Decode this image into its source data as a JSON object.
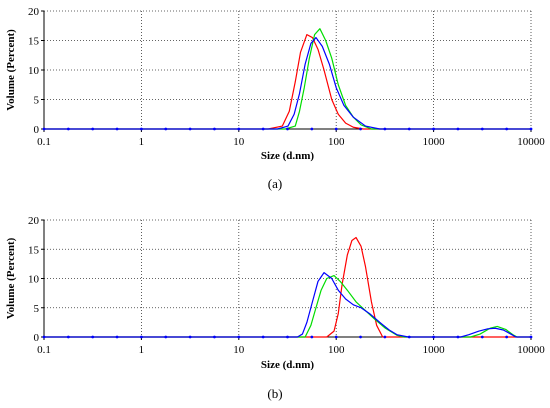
{
  "chart_data": [
    {
      "type": "line",
      "panel_label": "(a)",
      "xlabel": "Size (d.nm)",
      "ylabel": "Volume (Percent)",
      "x_scale": "log",
      "xlim": [
        0.1,
        10000
      ],
      "ylim": [
        0,
        20
      ],
      "x_ticks": [
        0.1,
        1,
        10,
        100,
        1000,
        10000
      ],
      "x_tick_labels": [
        "0.1",
        "1",
        "10",
        "100",
        "1000",
        "10000"
      ],
      "y_ticks": [
        0,
        5,
        10,
        15,
        20
      ],
      "y_tick_labels": [
        "0",
        "5",
        "10",
        "15",
        "20"
      ],
      "grid": true,
      "series": [
        {
          "color": "#ff0000",
          "points": [
            [
              0.1,
              0
            ],
            [
              20,
              0
            ],
            [
              28,
              0.5
            ],
            [
              33,
              3
            ],
            [
              38,
              8
            ],
            [
              43,
              13
            ],
            [
              50,
              16
            ],
            [
              57,
              15.5
            ],
            [
              65,
              13.5
            ],
            [
              75,
              10
            ],
            [
              90,
              5
            ],
            [
              105,
              2.5
            ],
            [
              125,
              1
            ],
            [
              150,
              0.3
            ],
            [
              190,
              0
            ],
            [
              10000,
              0
            ]
          ]
        },
        {
          "color": "#00dd00",
          "points": [
            [
              0.1,
              0
            ],
            [
              30,
              0
            ],
            [
              38,
              0.5
            ],
            [
              42,
              3
            ],
            [
              47,
              7
            ],
            [
              53,
              12
            ],
            [
              60,
              16
            ],
            [
              68,
              17
            ],
            [
              78,
              15
            ],
            [
              90,
              12
            ],
            [
              105,
              7.5
            ],
            [
              125,
              4
            ],
            [
              150,
              2
            ],
            [
              180,
              0.7
            ],
            [
              230,
              0
            ],
            [
              10000,
              0
            ]
          ]
        },
        {
          "color": "#0000ff",
          "points": [
            [
              0.1,
              0
            ],
            [
              25,
              0
            ],
            [
              32,
              0.5
            ],
            [
              37,
              2.5
            ],
            [
              42,
              6
            ],
            [
              48,
              11
            ],
            [
              55,
              14.5
            ],
            [
              62,
              15.5
            ],
            [
              72,
              14
            ],
            [
              85,
              11
            ],
            [
              100,
              7
            ],
            [
              120,
              4
            ],
            [
              150,
              2
            ],
            [
              200,
              0.5
            ],
            [
              280,
              0
            ],
            [
              10000,
              0
            ]
          ]
        }
      ]
    },
    {
      "type": "line",
      "panel_label": "(b)",
      "xlabel": "Size (d.nm)",
      "ylabel": "Volume (Percent)",
      "x_scale": "log",
      "xlim": [
        0.1,
        10000
      ],
      "ylim": [
        0,
        20
      ],
      "x_ticks": [
        0.1,
        1,
        10,
        100,
        1000,
        10000
      ],
      "x_tick_labels": [
        "0.1",
        "1",
        "10",
        "100",
        "1000",
        "10000"
      ],
      "y_ticks": [
        0,
        5,
        10,
        15,
        20
      ],
      "y_tick_labels": [
        "0",
        "5",
        "10",
        "15",
        "20"
      ],
      "grid": true,
      "series": [
        {
          "color": "#ff0000",
          "points": [
            [
              0.1,
              0
            ],
            [
              80,
              0
            ],
            [
              95,
              1
            ],
            [
              105,
              4
            ],
            [
              115,
              9
            ],
            [
              130,
              14
            ],
            [
              145,
              16.5
            ],
            [
              160,
              17
            ],
            [
              180,
              15.5
            ],
            [
              200,
              12
            ],
            [
              230,
              6
            ],
            [
              260,
              2
            ],
            [
              300,
              0
            ],
            [
              10000,
              0
            ]
          ]
        },
        {
          "color": "#00dd00",
          "points": [
            [
              0.1,
              0
            ],
            [
              48,
              0
            ],
            [
              55,
              2
            ],
            [
              62,
              5
            ],
            [
              70,
              8
            ],
            [
              80,
              10
            ],
            [
              95,
              10.5
            ],
            [
              110,
              9.5
            ],
            [
              130,
              8
            ],
            [
              160,
              6
            ],
            [
              200,
              4.5
            ],
            [
              250,
              3
            ],
            [
              320,
              1.5
            ],
            [
              420,
              0.3
            ],
            [
              500,
              0
            ],
            [
              2400,
              0
            ],
            [
              3000,
              0.5
            ],
            [
              3800,
              1.5
            ],
            [
              4500,
              1.8
            ],
            [
              5500,
              1.3
            ],
            [
              6500,
              0.4
            ],
            [
              7200,
              0
            ],
            [
              10000,
              0
            ]
          ]
        },
        {
          "color": "#0000ff",
          "points": [
            [
              0.1,
              0
            ],
            [
              40,
              0
            ],
            [
              45,
              0.5
            ],
            [
              50,
              2.5
            ],
            [
              57,
              6
            ],
            [
              65,
              9.5
            ],
            [
              75,
              11
            ],
            [
              90,
              10
            ],
            [
              105,
              8
            ],
            [
              125,
              6.5
            ],
            [
              150,
              5.5
            ],
            [
              180,
              5
            ],
            [
              220,
              4
            ],
            [
              280,
              2.5
            ],
            [
              350,
              1.2
            ],
            [
              420,
              0.4
            ],
            [
              550,
              0
            ],
            [
              1900,
              0
            ],
            [
              2300,
              0.4
            ],
            [
              2900,
              1
            ],
            [
              3600,
              1.4
            ],
            [
              4300,
              1.5
            ],
            [
              5200,
              1.2
            ],
            [
              6200,
              0.5
            ],
            [
              7000,
              0
            ],
            [
              10000,
              0
            ]
          ]
        }
      ]
    }
  ]
}
